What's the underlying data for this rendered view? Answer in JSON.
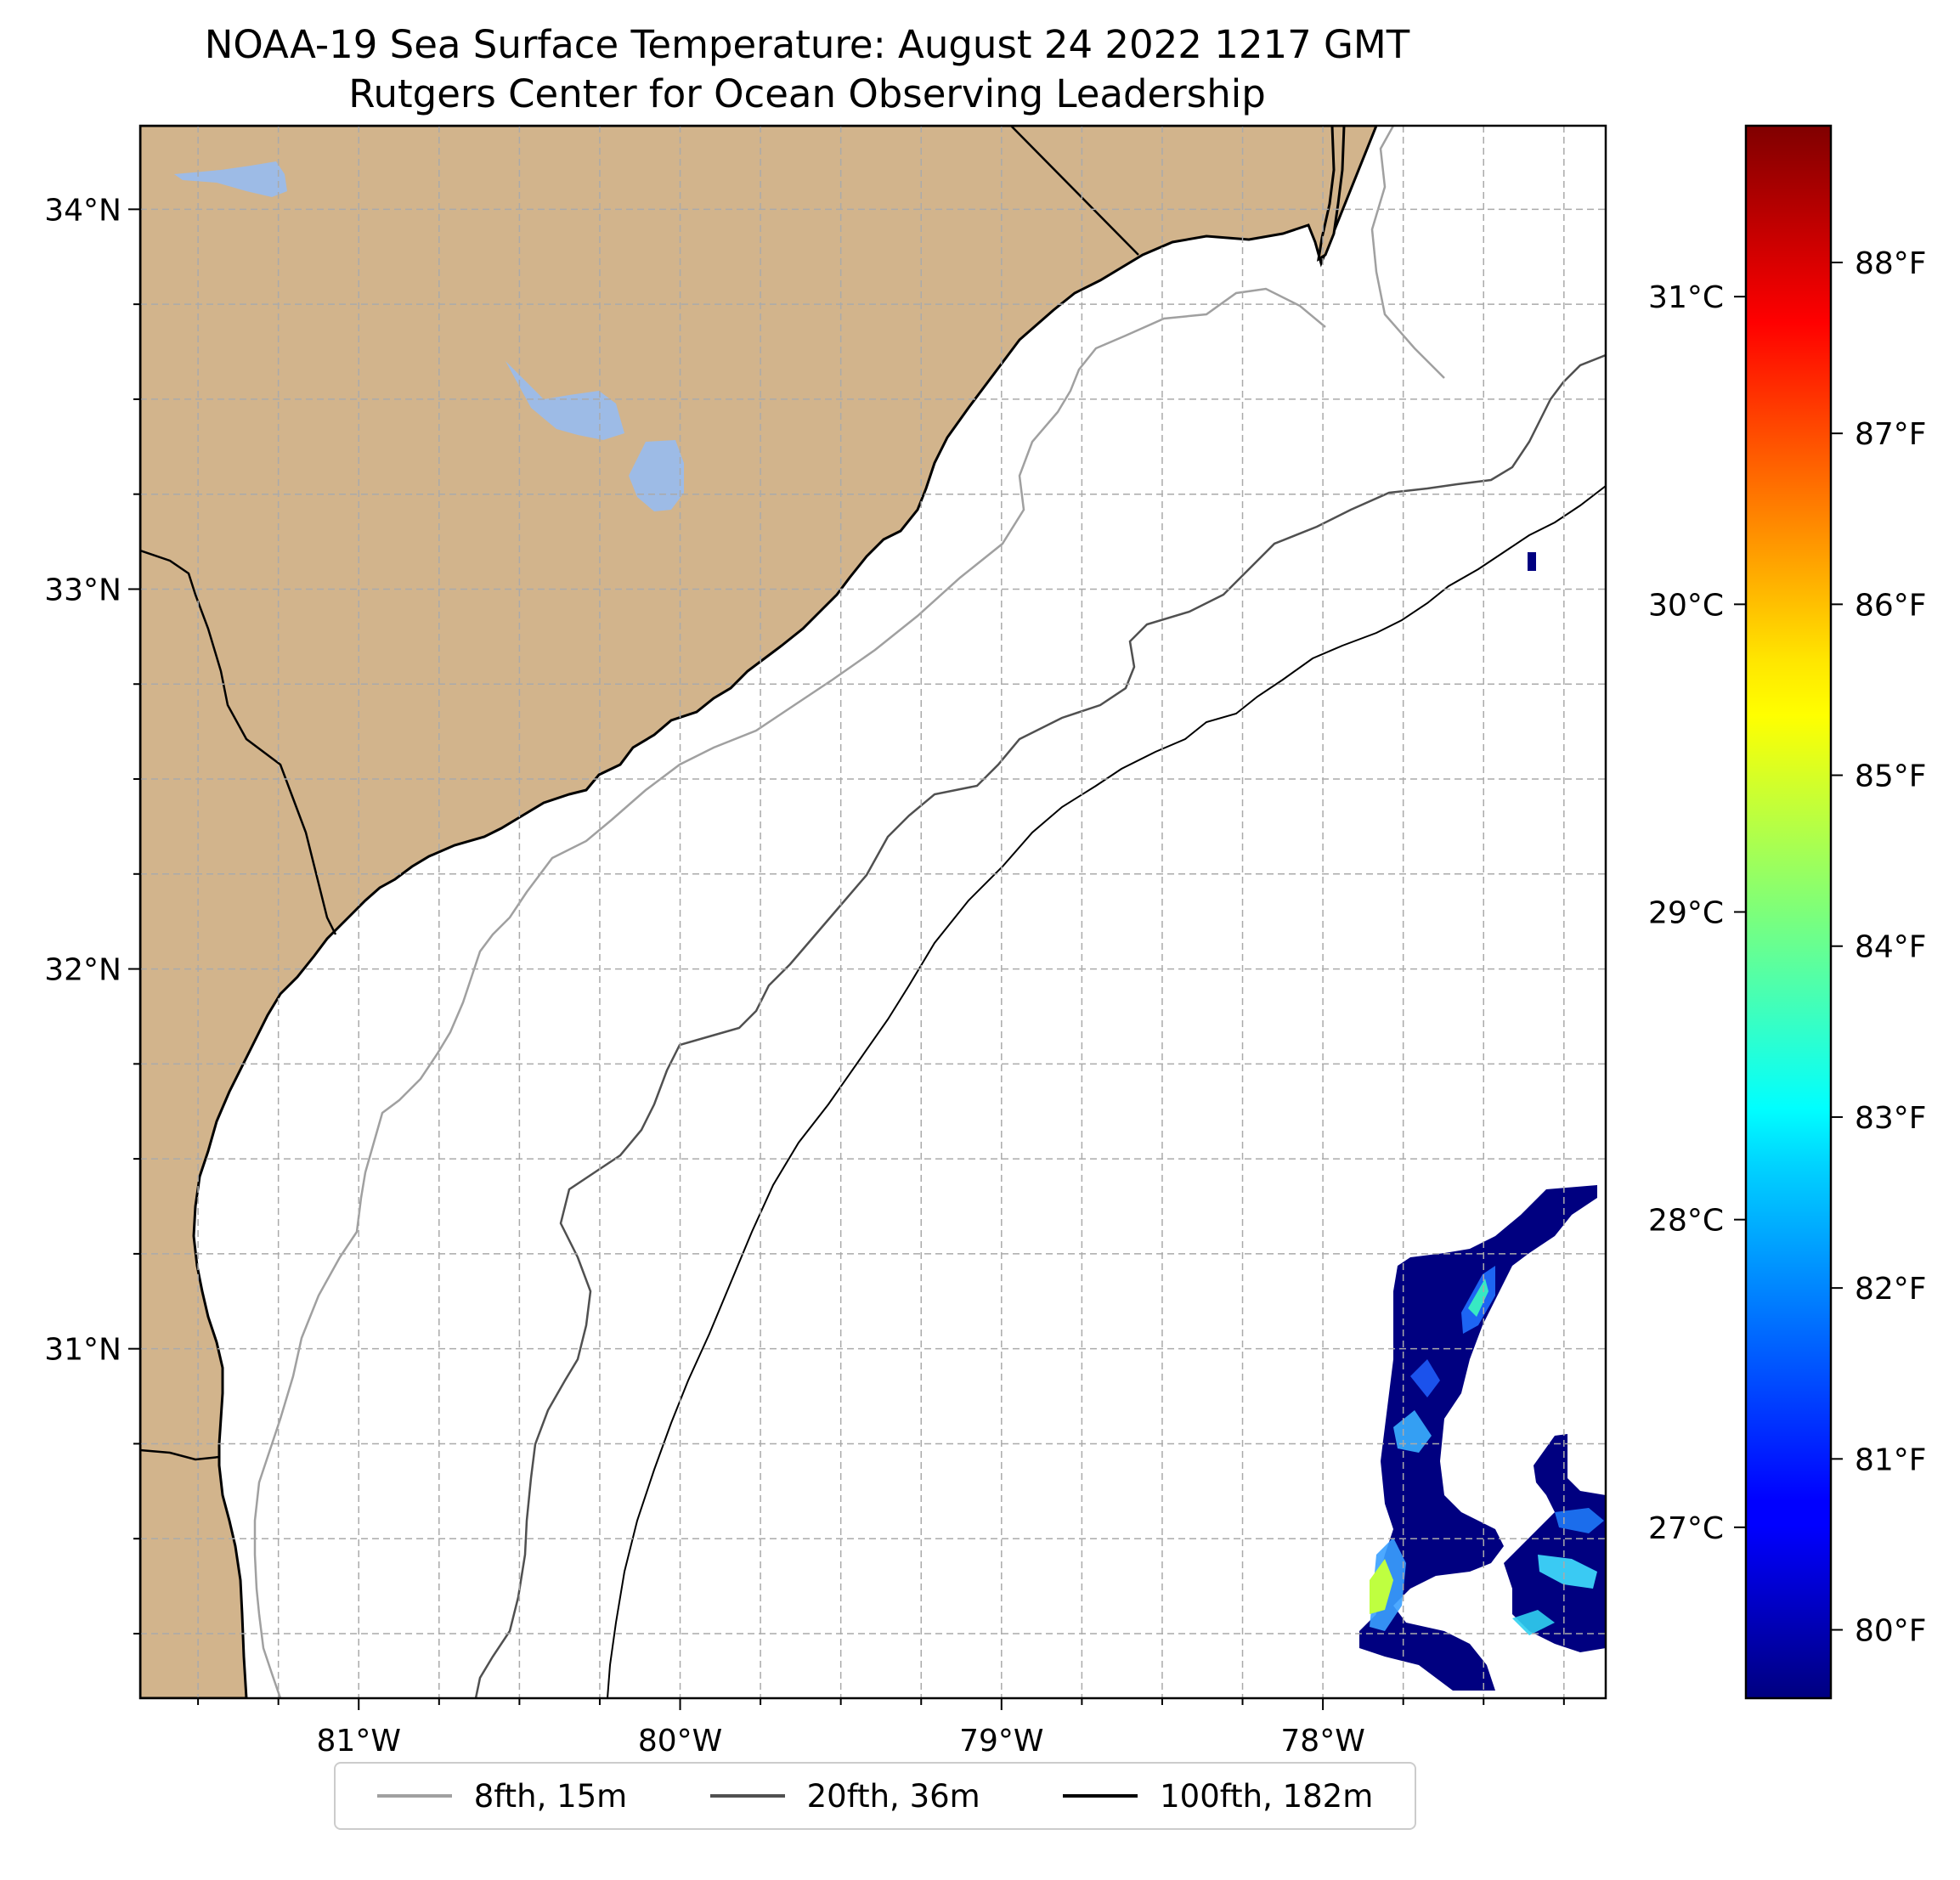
{
  "title": {
    "line1": "NOAA-19 Sea Surface Temperature: August 24 2022 1217 GMT",
    "line2": "Rutgers Center for Ocean Observing Leadership"
  },
  "map": {
    "lon_range": [
      -81.68,
      -77.12
    ],
    "lat_range": [
      30.08,
      34.22
    ],
    "land_color": "#d2b48c",
    "water_color": "#ffffff",
    "lake_color": "#9dbbe6",
    "grid": true,
    "lon_ticks": [
      {
        "value": -81,
        "label": "81°W"
      },
      {
        "value": -80,
        "label": "80°W"
      },
      {
        "value": -79,
        "label": "79°W"
      },
      {
        "value": -78,
        "label": "78°W"
      }
    ],
    "lat_ticks": [
      {
        "value": 34,
        "label": "34°N"
      },
      {
        "value": 33,
        "label": "33°N"
      },
      {
        "value": 32,
        "label": "32°N"
      },
      {
        "value": 31,
        "label": "31°N"
      }
    ]
  },
  "colorbar": {
    "colormap": "jet",
    "range_f": [
      79.6,
      88.8
    ],
    "celsius_labels": [
      {
        "value_f": 87.8,
        "label": "31°C"
      },
      {
        "value_f": 86.0,
        "label": "30°C"
      },
      {
        "value_f": 84.2,
        "label": "29°C"
      },
      {
        "value_f": 82.4,
        "label": "28°C"
      },
      {
        "value_f": 80.6,
        "label": "27°C"
      }
    ],
    "fahrenheit_labels": [
      {
        "value_f": 88,
        "label": "88°F"
      },
      {
        "value_f": 87,
        "label": "87°F"
      },
      {
        "value_f": 86,
        "label": "86°F"
      },
      {
        "value_f": 85,
        "label": "85°F"
      },
      {
        "value_f": 84,
        "label": "84°F"
      },
      {
        "value_f": 83,
        "label": "83°F"
      },
      {
        "value_f": 82,
        "label": "82°F"
      },
      {
        "value_f": 81,
        "label": "81°F"
      },
      {
        "value_f": 80,
        "label": "80°F"
      }
    ]
  },
  "legend": [
    {
      "label": "8fth, 15m",
      "color": "#a0a0a0"
    },
    {
      "label": "20fth, 36m",
      "color": "#505050"
    },
    {
      "label": "100fth, 182m",
      "color": "#000000"
    }
  ]
}
